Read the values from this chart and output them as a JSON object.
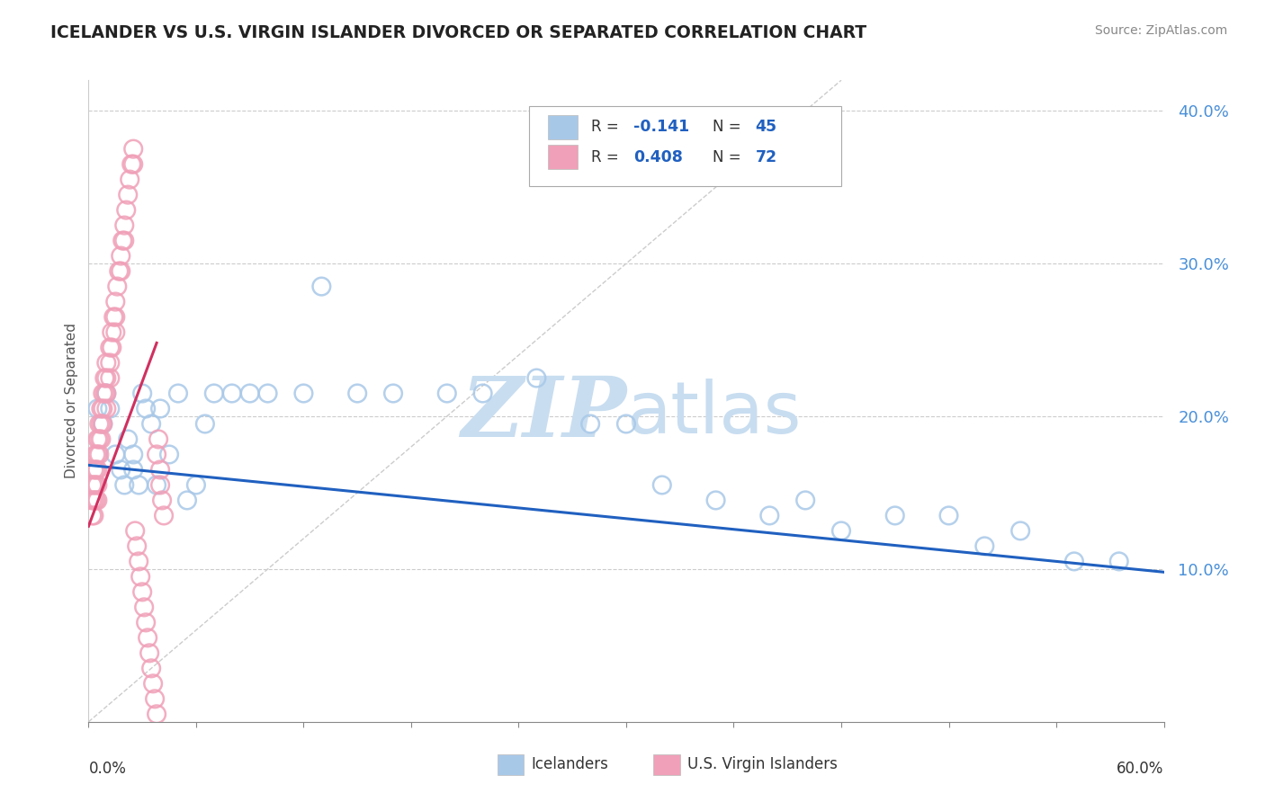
{
  "title": "ICELANDER VS U.S. VIRGIN ISLANDER DIVORCED OR SEPARATED CORRELATION CHART",
  "source": "Source: ZipAtlas.com",
  "ylabel": "Divorced or Separated",
  "xlim": [
    0.0,
    0.6
  ],
  "ylim": [
    0.0,
    0.42
  ],
  "ytick_vals": [
    0.0,
    0.1,
    0.2,
    0.3,
    0.4
  ],
  "ytick_labels": [
    "",
    "10.0%",
    "20.0%",
    "30.0%",
    "40.0%"
  ],
  "blue_color": "#a8c8e8",
  "pink_color": "#f0a0b8",
  "trend_blue": "#2060c0",
  "trend_pink": "#d03060",
  "watermark_color": "#c8ddf0",
  "blue_trend_x": [
    0.0,
    0.6
  ],
  "blue_trend_y": [
    0.168,
    0.098
  ],
  "pink_trend_x": [
    0.0,
    0.038
  ],
  "pink_trend_y": [
    0.128,
    0.248
  ],
  "blue_x": [
    0.005,
    0.008,
    0.01,
    0.012,
    0.015,
    0.018,
    0.02,
    0.022,
    0.025,
    0.025,
    0.028,
    0.03,
    0.032,
    0.035,
    0.038,
    0.04,
    0.045,
    0.05,
    0.055,
    0.06,
    0.065,
    0.07,
    0.08,
    0.09,
    0.1,
    0.12,
    0.13,
    0.15,
    0.17,
    0.2,
    0.22,
    0.25,
    0.28,
    0.3,
    0.32,
    0.35,
    0.38,
    0.4,
    0.42,
    0.45,
    0.48,
    0.5,
    0.52,
    0.55,
    0.575
  ],
  "blue_y": [
    0.205,
    0.195,
    0.215,
    0.205,
    0.175,
    0.165,
    0.155,
    0.185,
    0.175,
    0.165,
    0.155,
    0.215,
    0.205,
    0.195,
    0.155,
    0.205,
    0.175,
    0.215,
    0.145,
    0.155,
    0.195,
    0.215,
    0.215,
    0.215,
    0.215,
    0.215,
    0.285,
    0.215,
    0.215,
    0.215,
    0.215,
    0.225,
    0.195,
    0.195,
    0.155,
    0.145,
    0.135,
    0.145,
    0.125,
    0.135,
    0.135,
    0.115,
    0.125,
    0.105,
    0.105
  ],
  "pink_x": [
    0.002,
    0.002,
    0.002,
    0.003,
    0.003,
    0.003,
    0.003,
    0.004,
    0.004,
    0.004,
    0.004,
    0.005,
    0.005,
    0.005,
    0.005,
    0.005,
    0.006,
    0.006,
    0.006,
    0.007,
    0.007,
    0.007,
    0.008,
    0.008,
    0.008,
    0.009,
    0.009,
    0.01,
    0.01,
    0.01,
    0.01,
    0.012,
    0.012,
    0.012,
    0.013,
    0.013,
    0.014,
    0.015,
    0.015,
    0.015,
    0.016,
    0.017,
    0.018,
    0.018,
    0.019,
    0.02,
    0.02,
    0.021,
    0.022,
    0.023,
    0.024,
    0.025,
    0.025,
    0.026,
    0.027,
    0.028,
    0.029,
    0.03,
    0.031,
    0.032,
    0.033,
    0.034,
    0.035,
    0.036,
    0.037,
    0.038,
    0.038,
    0.039,
    0.04,
    0.04,
    0.041,
    0.042
  ],
  "pink_y": [
    0.155,
    0.145,
    0.135,
    0.165,
    0.155,
    0.145,
    0.135,
    0.175,
    0.165,
    0.155,
    0.145,
    0.185,
    0.175,
    0.165,
    0.155,
    0.145,
    0.195,
    0.185,
    0.175,
    0.205,
    0.195,
    0.185,
    0.215,
    0.205,
    0.195,
    0.225,
    0.215,
    0.235,
    0.225,
    0.215,
    0.205,
    0.245,
    0.235,
    0.225,
    0.255,
    0.245,
    0.265,
    0.275,
    0.265,
    0.255,
    0.285,
    0.295,
    0.305,
    0.295,
    0.315,
    0.325,
    0.315,
    0.335,
    0.345,
    0.355,
    0.365,
    0.375,
    0.365,
    0.125,
    0.115,
    0.105,
    0.095,
    0.085,
    0.075,
    0.065,
    0.055,
    0.045,
    0.035,
    0.025,
    0.015,
    0.005,
    0.175,
    0.185,
    0.165,
    0.155,
    0.145,
    0.135
  ]
}
